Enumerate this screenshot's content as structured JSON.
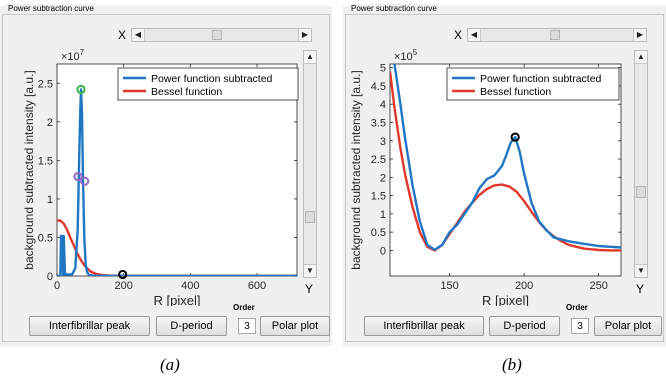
{
  "colors": {
    "series_blue": "#1f77c4",
    "series_red": "#e0392b",
    "marker_green": "#3cb44b",
    "marker_purple": "#8e6bbf",
    "marker_black": "#000000",
    "plot_bg": "#ffffff",
    "panel_bg": "#f0f0f0"
  },
  "icons": {
    "left_arrow": "◀",
    "right_arrow": "▶",
    "up_arrow": "▲",
    "down_arrow": "▼"
  },
  "panels": [
    {
      "group_title": "Power subtraction curve",
      "x_slider_label": "X",
      "y_slider_label": "Y",
      "order_label": "Order",
      "order_value": "3",
      "buttons": {
        "interfibrillar": "Interfibrillar peak",
        "dperiod": "D-period",
        "polar": "Polar plot"
      },
      "caption": "(a)"
    },
    {
      "group_title": "Power subtraction curve",
      "x_slider_label": "X",
      "y_slider_label": "Y",
      "order_label": "Order",
      "order_value": "3",
      "buttons": {
        "interfibrillar": "Interfibrillar peak",
        "dperiod": "D-period",
        "polar": "Polar plot"
      },
      "caption": "(b)"
    }
  ],
  "chart_data": [
    {
      "type": "line",
      "xlabel": "R [pixel]",
      "ylabel": "background subtracted intensity [a.u.]",
      "exponent_label": "×10",
      "exponent": "7",
      "xlim": [
        0,
        720
      ],
      "ylim": [
        0,
        2.75
      ],
      "xticks": [
        0,
        200,
        400,
        600
      ],
      "yticks": [
        0,
        0.5,
        1,
        1.5,
        2,
        2.5
      ],
      "grid": false,
      "legend_position": "top-right",
      "series": [
        {
          "name": "Power function subtracted",
          "color": "#1f77c4",
          "x": [
            0,
            10,
            12,
            14,
            18,
            20,
            22,
            24,
            28,
            35,
            45,
            55,
            62,
            67,
            70,
            72,
            75,
            78,
            82,
            86,
            90,
            95,
            100,
            110,
            130,
            160,
            200,
            300,
            400,
            500,
            600,
            700,
            720
          ],
          "y": [
            0,
            0,
            0.52,
            0.52,
            0.02,
            0.52,
            0.3,
            0.02,
            0.02,
            0.02,
            0.02,
            0.1,
            0.6,
            1.6,
            2.15,
            2.42,
            2.1,
            1.25,
            0.5,
            0.15,
            0.05,
            0.02,
            0.01,
            0.005,
            0.003,
            0.002,
            0.002,
            0.002,
            0.002,
            0.002,
            0.002,
            0.002,
            0.002
          ]
        },
        {
          "name": "Bessel function",
          "color": "#e0392b",
          "x": [
            0,
            10,
            20,
            30,
            40,
            50,
            60,
            70,
            80,
            90,
            100,
            110,
            120,
            140,
            160,
            200,
            300,
            400,
            500,
            600,
            720
          ],
          "y": [
            0.72,
            0.72,
            0.68,
            0.6,
            0.5,
            0.4,
            0.3,
            0.22,
            0.15,
            0.1,
            0.06,
            0.04,
            0.025,
            0.01,
            0.005,
            0.002,
            0.002,
            0.002,
            0.002,
            0.002,
            0.002
          ]
        }
      ],
      "markers": [
        {
          "x": 72,
          "y": 2.42,
          "color": "#3cb44b"
        },
        {
          "x": 63,
          "y": 1.29,
          "color": "#8e6bbf"
        },
        {
          "x": 83,
          "y": 1.23,
          "color": "#8e6bbf"
        },
        {
          "x": 197,
          "y": 0.02,
          "color": "#000000"
        }
      ]
    },
    {
      "type": "line",
      "xlabel": "R [pixel]",
      "ylabel": "background subtracted intensity [a.u.]",
      "exponent_label": "×10",
      "exponent": "5",
      "xlim": [
        110,
        265
      ],
      "ylim": [
        -0.7,
        5.1
      ],
      "xticks": [
        150,
        200,
        250
      ],
      "yticks": [
        0,
        0.5,
        1,
        1.5,
        2,
        2.5,
        3,
        3.5,
        4,
        4.5,
        5
      ],
      "grid": false,
      "legend_position": "top-right",
      "series": [
        {
          "name": "Power function subtracted",
          "color": "#1f77c4",
          "x": [
            110,
            113,
            117,
            120,
            125,
            130,
            135,
            140,
            145,
            150,
            155,
            160,
            165,
            170,
            175,
            180,
            185,
            188,
            191,
            194,
            197,
            200,
            205,
            210,
            215,
            220,
            225,
            230,
            240,
            250,
            258,
            265
          ],
          "y": [
            5.2,
            5.1,
            4.0,
            3.1,
            1.8,
            0.8,
            0.15,
            0.02,
            0.15,
            0.5,
            0.7,
            1.0,
            1.3,
            1.7,
            1.95,
            2.05,
            2.3,
            2.6,
            2.95,
            3.1,
            2.7,
            2.1,
            1.3,
            0.8,
            0.55,
            0.35,
            0.3,
            0.25,
            0.18,
            0.12,
            0.1,
            0.08
          ]
        },
        {
          "name": "Bessel function",
          "color": "#e0392b",
          "x": [
            110,
            113,
            117,
            120,
            125,
            130,
            135,
            140,
            145,
            150,
            155,
            160,
            165,
            170,
            175,
            180,
            185,
            190,
            195,
            200,
            205,
            210,
            215,
            220,
            225,
            230,
            240,
            250,
            258,
            265
          ],
          "y": [
            4.9,
            3.9,
            2.8,
            2.1,
            1.2,
            0.5,
            0.1,
            0.0,
            0.15,
            0.45,
            0.75,
            1.05,
            1.3,
            1.52,
            1.68,
            1.78,
            1.8,
            1.75,
            1.6,
            1.35,
            1.05,
            0.78,
            0.55,
            0.38,
            0.25,
            0.15,
            0.05,
            0.01,
            0.0,
            0.0
          ]
        }
      ],
      "markers": [
        {
          "x": 194,
          "y": 3.1,
          "color": "#000000"
        }
      ]
    }
  ]
}
